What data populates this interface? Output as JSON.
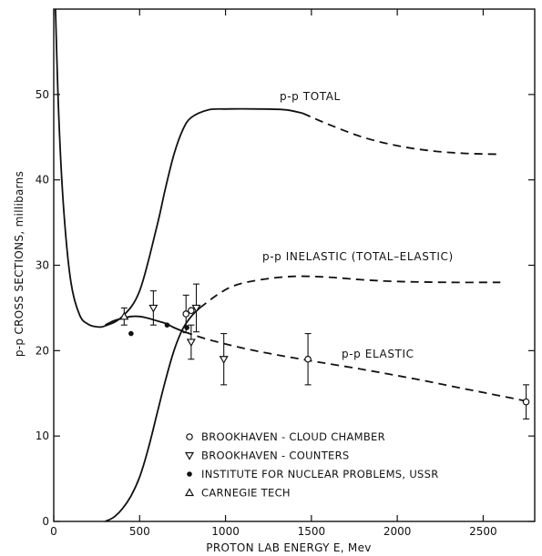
{
  "chart_data": {
    "type": "line",
    "xlabel": "PROTON LAB ENERGY E, Mev",
    "ylabel": "p-p CROSS SECTIONS, millibarns",
    "xlim": [
      0,
      2800
    ],
    "ylim": [
      0,
      60
    ],
    "x_ticks": [
      0,
      500,
      1000,
      1500,
      2000,
      2500
    ],
    "y_ticks": [
      0,
      10,
      20,
      30,
      40,
      50
    ],
    "grid": false,
    "curves": [
      {
        "name": "p-p TOTAL",
        "label": "p-p TOTAL",
        "solid": [
          [
            10,
            60
          ],
          [
            30,
            47
          ],
          [
            60,
            36
          ],
          [
            100,
            28
          ],
          [
            150,
            24.2
          ],
          [
            200,
            23.1
          ],
          [
            250,
            22.8
          ],
          [
            300,
            22.9
          ],
          [
            400,
            24
          ],
          [
            500,
            27
          ],
          [
            600,
            34.5
          ],
          [
            650,
            39
          ],
          [
            700,
            43
          ],
          [
            750,
            45.8
          ],
          [
            800,
            47.3
          ],
          [
            900,
            48.2
          ],
          [
            1000,
            48.3
          ],
          [
            1200,
            48.3
          ],
          [
            1350,
            48.2
          ],
          [
            1450,
            47.8
          ]
        ],
        "dashed": [
          [
            1450,
            47.8
          ],
          [
            1600,
            46.5
          ],
          [
            1800,
            45
          ],
          [
            2000,
            44
          ],
          [
            2200,
            43.4
          ],
          [
            2400,
            43.1
          ],
          [
            2600,
            43
          ]
        ]
      },
      {
        "name": "p-p INELASTIC (TOTAL-ELASTIC)",
        "label": "p-p INELASTIC (TOTAL–ELASTIC)",
        "solid": [
          [
            300,
            0
          ],
          [
            350,
            0.5
          ],
          [
            400,
            1.5
          ],
          [
            450,
            3
          ],
          [
            500,
            5.2
          ],
          [
            550,
            8.5
          ],
          [
            600,
            12.5
          ],
          [
            650,
            16.5
          ],
          [
            700,
            20
          ],
          [
            750,
            22.5
          ],
          [
            800,
            24
          ],
          [
            850,
            25
          ]
        ],
        "dashed": [
          [
            850,
            25
          ],
          [
            950,
            26.5
          ],
          [
            1050,
            27.6
          ],
          [
            1200,
            28.3
          ],
          [
            1400,
            28.7
          ],
          [
            1600,
            28.6
          ],
          [
            1800,
            28.3
          ],
          [
            2000,
            28.1
          ],
          [
            2300,
            28
          ],
          [
            2600,
            28
          ]
        ]
      },
      {
        "name": "p-p ELASTIC",
        "label": "p-p ELASTIC",
        "solid": [
          [
            300,
            23
          ],
          [
            350,
            23.5
          ],
          [
            400,
            23.8
          ],
          [
            450,
            24
          ],
          [
            500,
            24
          ],
          [
            550,
            23.8
          ],
          [
            600,
            23.5
          ],
          [
            650,
            23.2
          ],
          [
            700,
            22.7
          ],
          [
            760,
            22.2
          ]
        ],
        "dashed": [
          [
            760,
            22.2
          ],
          [
            900,
            21.3
          ],
          [
            1100,
            20.3
          ],
          [
            1300,
            19.5
          ],
          [
            1500,
            18.8
          ],
          [
            1800,
            17.8
          ],
          [
            2100,
            16.7
          ],
          [
            2400,
            15.5
          ],
          [
            2700,
            14.3
          ],
          [
            2760,
            14
          ]
        ]
      }
    ],
    "points": [
      {
        "series": "BROOKHAVEN - CLOUD CHAMBER",
        "marker": "open-circle",
        "x": 770,
        "y": 24.3,
        "err": 2.2
      },
      {
        "series": "BROOKHAVEN - CLOUD CHAMBER",
        "marker": "open-circle",
        "x": 1480,
        "y": 19,
        "err": 3
      },
      {
        "series": "BROOKHAVEN - CLOUD CHAMBER",
        "marker": "open-circle",
        "x": 2750,
        "y": 14,
        "err": 2
      },
      {
        "series": "BROOKHAVEN - CLOUD CHAMBER",
        "marker": "open-circle",
        "x": 800,
        "y": 24.7,
        "err": 0
      },
      {
        "series": "BROOKHAVEN - COUNTERS",
        "marker": "open-triangle-down",
        "x": 580,
        "y": 25,
        "err": 2
      },
      {
        "series": "BROOKHAVEN - COUNTERS",
        "marker": "open-triangle-down",
        "x": 800,
        "y": 21,
        "err": 2
      },
      {
        "series": "BROOKHAVEN - COUNTERS",
        "marker": "open-triangle-down",
        "x": 990,
        "y": 19,
        "err": 3
      },
      {
        "series": "BROOKHAVEN - COUNTERS",
        "marker": "open-triangle-down",
        "x": 830,
        "y": 25,
        "err": 2.8
      },
      {
        "series": "INSTITUTE FOR NUCLEAR PROBLEMS, USSR",
        "marker": "filled-circle",
        "x": 450,
        "y": 22,
        "err": 0
      },
      {
        "series": "INSTITUTE FOR NUCLEAR PROBLEMS, USSR",
        "marker": "filled-circle",
        "x": 660,
        "y": 23,
        "err": 0
      },
      {
        "series": "INSTITUTE FOR NUCLEAR PROBLEMS, USSR",
        "marker": "filled-circle",
        "x": 775,
        "y": 22.7,
        "err": 0
      },
      {
        "series": "CARNEGIE TECH",
        "marker": "open-triangle-up",
        "x": 410,
        "y": 24,
        "err": 1
      }
    ],
    "legend": {
      "placement": "bottom-left",
      "entries": [
        {
          "marker": "open-circle",
          "label": "BROOKHAVEN - CLOUD CHAMBER"
        },
        {
          "marker": "open-triangle-down",
          "label": "BROOKHAVEN - COUNTERS"
        },
        {
          "marker": "filled-circle",
          "label": "INSTITUTE FOR NUCLEAR PROBLEMS, USSR"
        },
        {
          "marker": "open-triangle-up",
          "label": "CARNEGIE TECH"
        }
      ]
    }
  }
}
